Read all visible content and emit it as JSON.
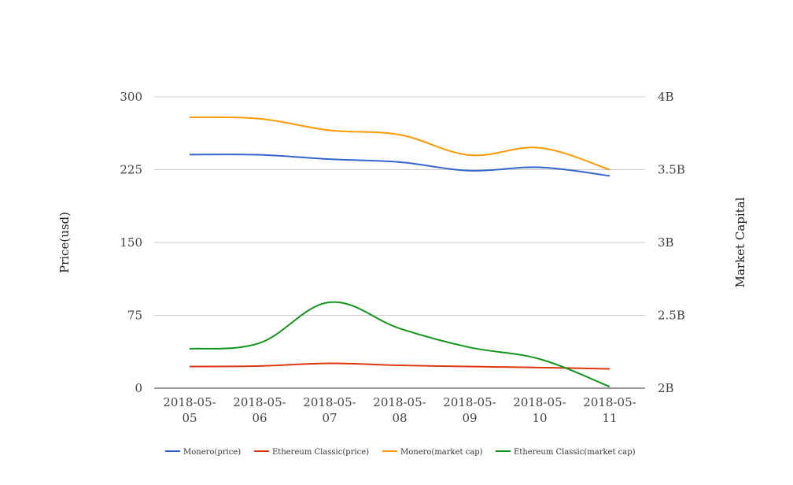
{
  "chart_data": {
    "type": "line",
    "categories": [
      "2018-05-05",
      "2018-05-06",
      "2018-05-07",
      "2018-05-08",
      "2018-05-09",
      "2018-05-10",
      "2018-05-11"
    ],
    "category_lines": [
      [
        "2018-05-",
        "05"
      ],
      [
        "2018-05-",
        "06"
      ],
      [
        "2018-05-",
        "07"
      ],
      [
        "2018-05-",
        "08"
      ],
      [
        "2018-05-",
        "09"
      ],
      [
        "2018-05-",
        "10"
      ],
      [
        "2018-05-",
        "11"
      ]
    ],
    "y_left": {
      "label": "Price(usd)",
      "ticks": [
        0,
        75,
        150,
        225,
        300
      ],
      "tick_labels": [
        "0",
        "75",
        "150",
        "225",
        "300"
      ],
      "range": [
        0,
        300
      ]
    },
    "y_right": {
      "label": "Market Capital",
      "ticks": [
        2000000000,
        2500000000,
        3000000000,
        3500000000,
        4000000000
      ],
      "tick_labels": [
        "2B",
        "2.5B",
        "3B",
        "3.5B",
        "4B"
      ],
      "range": [
        2000000000,
        4000000000
      ]
    },
    "grid": true,
    "legend_position": "bottom",
    "series": [
      {
        "name": "Monero(price)",
        "axis": "left",
        "color": "#3366cc",
        "values": [
          240.5,
          240.3,
          235.8,
          232.8,
          224.0,
          227.4,
          218.6
        ]
      },
      {
        "name": "Ethereum Classic(price)",
        "axis": "left",
        "color": "#dc3912",
        "values": [
          22.3,
          22.8,
          25.5,
          23.5,
          22.3,
          21.2,
          19.9
        ]
      },
      {
        "name": "Monero(market cap)",
        "axis": "right",
        "color": "#ff9900",
        "values": [
          3860000000,
          3850000000,
          3770000000,
          3740000000,
          3600000000,
          3650000000,
          3500000000
        ]
      },
      {
        "name": "Ethereum Classic(market cap)",
        "axis": "right",
        "color": "#109618",
        "values": [
          2270000000,
          2310000000,
          2590000000,
          2410000000,
          2280000000,
          2200000000,
          2010000000
        ]
      }
    ]
  }
}
